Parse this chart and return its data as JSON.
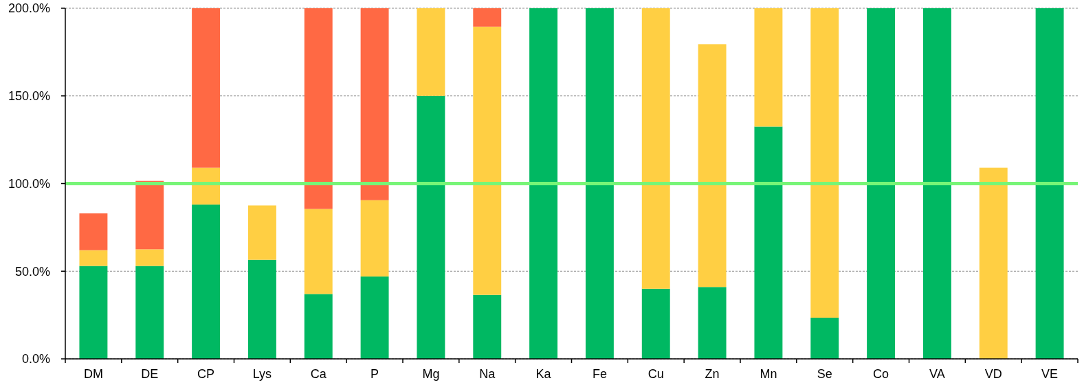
{
  "chart_data": {
    "type": "bar",
    "stacked": true,
    "categories": [
      "DM",
      "DE",
      "CP",
      "Lys",
      "Ca",
      "P",
      "Mg",
      "Na",
      "Ka",
      "Fe",
      "Cu",
      "Zn",
      "Mn",
      "Se",
      "Co",
      "VA",
      "VD",
      "VE"
    ],
    "series": [
      {
        "color": "#00b862",
        "values": [
          53,
          53,
          88,
          56.5,
          37,
          47,
          150,
          36.5,
          200,
          200,
          40,
          41,
          132.5,
          23.5,
          200,
          200,
          null,
          200
        ]
      },
      {
        "color": "#ffcf43",
        "values": [
          9,
          9.5,
          21,
          31,
          48.5,
          43.5,
          50,
          153,
          null,
          null,
          160,
          138.5,
          67.5,
          176.5,
          null,
          null,
          109,
          null
        ]
      },
      {
        "color": "#ff6944",
        "values": [
          21,
          39,
          91,
          null,
          114.5,
          109.5,
          null,
          10.5,
          null,
          null,
          null,
          null,
          null,
          null,
          null,
          null,
          null,
          null
        ]
      }
    ],
    "ylim": [
      0,
      200
    ],
    "yticks": [
      {
        "value": 0,
        "label": "0.0%"
      },
      {
        "value": 50,
        "label": "50.0%"
      },
      {
        "value": 100,
        "label": "100.0%"
      },
      {
        "value": 150,
        "label": "150.0%"
      },
      {
        "value": 200,
        "label": "200.0%"
      }
    ],
    "grid": "y",
    "ref_lines": [
      {
        "axis": "y",
        "value": 100,
        "color": "#77f577"
      }
    ]
  }
}
